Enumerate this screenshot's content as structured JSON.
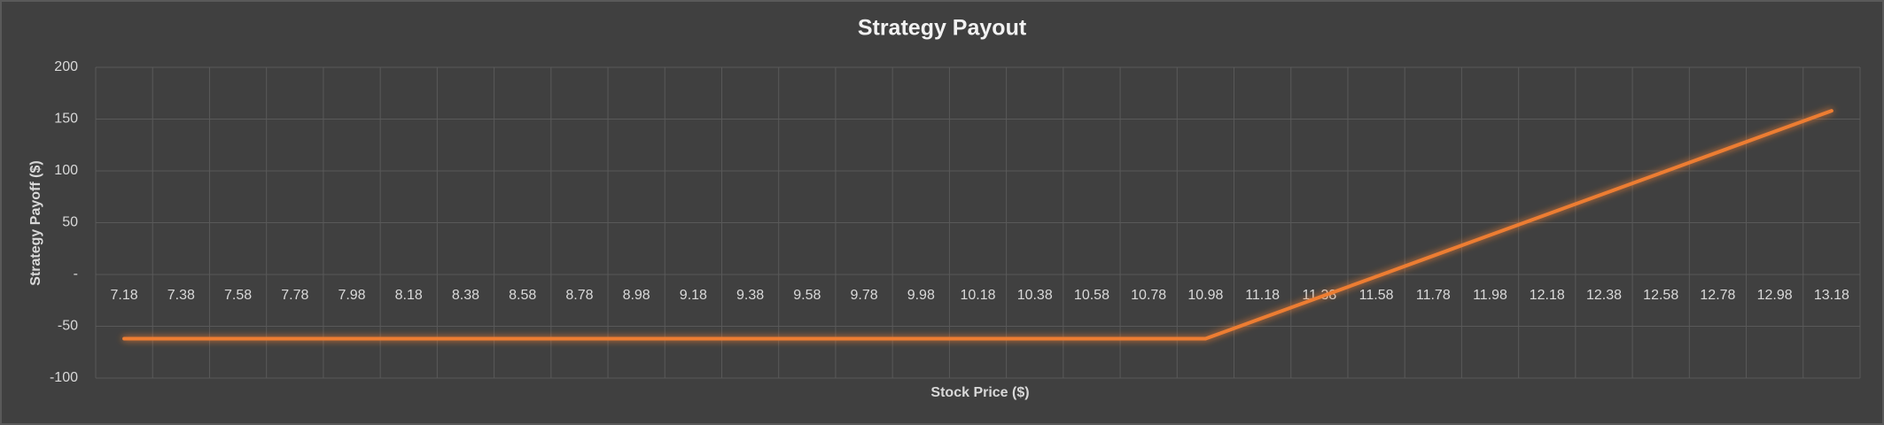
{
  "chart_data": {
    "type": "line",
    "title": "Strategy Payout",
    "x_label": "Stock Price ($)",
    "y_label": "Strategy Payoff ($)",
    "categories": [
      "7.18",
      "7.38",
      "7.58",
      "7.78",
      "7.98",
      "8.18",
      "8.38",
      "8.58",
      "8.78",
      "8.98",
      "9.18",
      "9.38",
      "9.58",
      "9.78",
      "9.98",
      "10.18",
      "10.38",
      "10.58",
      "10.78",
      "10.98",
      "11.18",
      "11.38",
      "11.58",
      "11.78",
      "11.98",
      "12.18",
      "12.38",
      "12.58",
      "12.78",
      "12.98",
      "13.18"
    ],
    "values": [
      -62,
      -62,
      -62,
      -62,
      -62,
      -62,
      -62,
      -62,
      -62,
      -62,
      -62,
      -62,
      -62,
      -62,
      -62,
      -62,
      -62,
      -62,
      -62,
      -62,
      -42,
      -22,
      -2,
      18,
      38,
      58,
      78,
      98,
      118,
      138,
      158
    ],
    "color": "#ed7d31",
    "ylim": [
      -100,
      200
    ],
    "yticks": [
      -100,
      -50,
      {
        "value": 0,
        "label": "-"
      },
      50,
      100,
      150,
      200
    ],
    "grid": true
  }
}
